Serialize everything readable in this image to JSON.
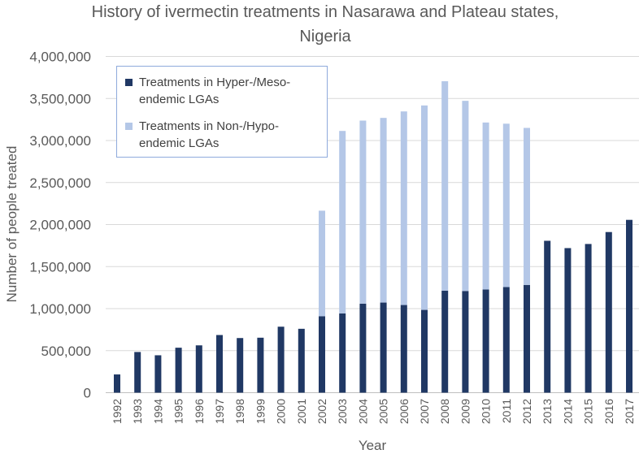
{
  "chart_data": {
    "type": "bar",
    "stacked": true,
    "title": "History of ivermectin treatments in Nasarawa and Plateau states, Nigeria",
    "xlabel": "Year",
    "ylabel": "Number of people treated",
    "ylim": [
      0,
      4000000
    ],
    "yticks": [
      "0",
      "500,000",
      "1,000,000",
      "1,500,000",
      "2,000,000",
      "2,500,000",
      "3,000,000",
      "3,500,000",
      "4,000,000"
    ],
    "grid": true,
    "legend_position": "top-left",
    "categories": [
      "1992",
      "1993",
      "1994",
      "1995",
      "1996",
      "1997",
      "1998",
      "1999",
      "2000",
      "2001",
      "2002",
      "2003",
      "2004",
      "2005",
      "2006",
      "2007",
      "2008",
      "2009",
      "2010",
      "2011",
      "2012",
      "2013",
      "2014",
      "2015",
      "2016",
      "2017"
    ],
    "series": [
      {
        "name": "Treatments in Hyper-/Meso-endemic LGAs",
        "color": "#203864",
        "values": [
          217000,
          484000,
          445000,
          535000,
          563000,
          686000,
          650000,
          654000,
          785000,
          760000,
          910000,
          943000,
          1059000,
          1072000,
          1043000,
          985000,
          1214000,
          1210000,
          1227000,
          1256000,
          1282000,
          1807000,
          1720000,
          1769000,
          1911000,
          2056000
        ]
      },
      {
        "name": "Treatments in Non-/Hypo-endemic LGAs",
        "color": "#b4c7e7",
        "values": [
          0,
          0,
          0,
          0,
          0,
          0,
          0,
          0,
          0,
          0,
          1255000,
          2171000,
          2178000,
          2197000,
          2303000,
          2432000,
          2491000,
          2262000,
          1987000,
          1944000,
          1868000,
          0,
          0,
          0,
          0,
          0
        ]
      }
    ]
  },
  "legend": {
    "item1_line1": "Treatments in Hyper-/Meso-",
    "item1_line2": "endemic LGAs",
    "item2_line1": "Treatments in Non-/Hypo-",
    "item2_line2": "endemic LGAs"
  }
}
